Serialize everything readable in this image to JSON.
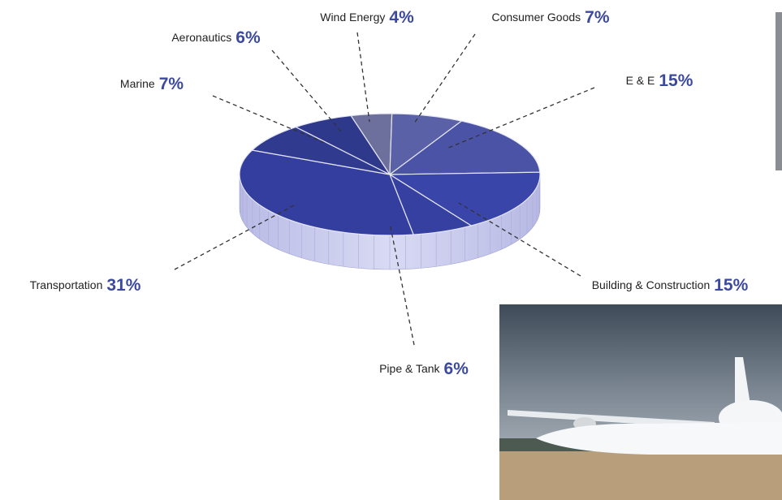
{
  "chart_data": {
    "type": "pie",
    "categories": [
      "Wind Energy",
      "Consumer Goods",
      "E & E",
      "Building & Construction",
      "Pipe & Tank",
      "Transportation",
      "Marine",
      "Aeronautics"
    ],
    "values": [
      4,
      7,
      15,
      15,
      6,
      31,
      7,
      6
    ],
    "value_labels": [
      "4%",
      "7%",
      "15%",
      "15%",
      "6%",
      "31%",
      "7%",
      "6%"
    ],
    "colors": [
      "#6d6f9c",
      "#5b61a6",
      "#4b53a6",
      "#3a45a9",
      "#3540a1",
      "#333e9e",
      "#303b90",
      "#2e398c"
    ]
  }
}
